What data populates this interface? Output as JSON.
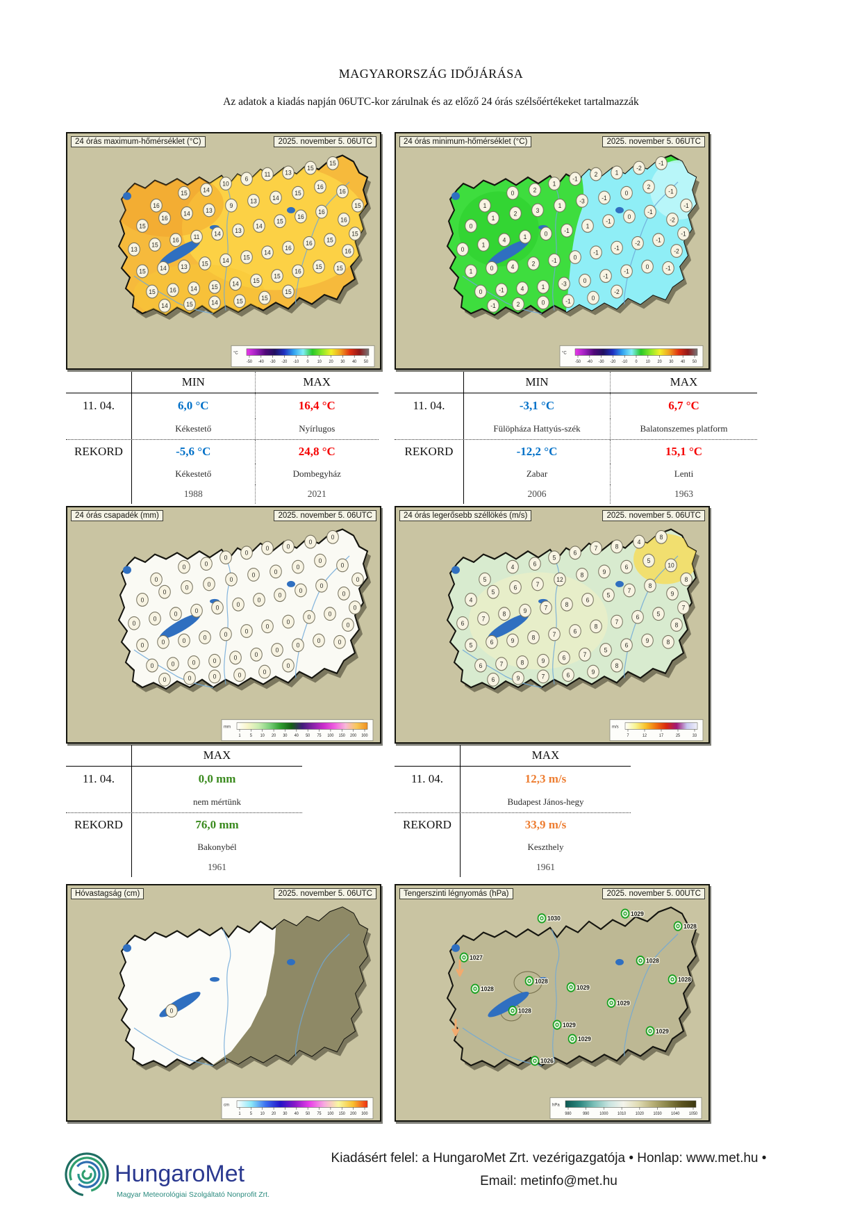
{
  "page": {
    "title": "MAGYARORSZÁG IDŐJÁRÁSA",
    "subtitle": "Az adatok a kiadás napján 06UTC-kor zárulnak és az előző 24 órás szélsőértékeket tartalmazzák"
  },
  "theme": {
    "blue": "#0070c8",
    "red": "#f50000",
    "green": "#3a8a1e",
    "orange": "#ed7d31",
    "map_bg": "#c9c4a2"
  },
  "station_grid": [
    [
      128,
      92
    ],
    [
      168,
      76
    ],
    [
      200,
      72
    ],
    [
      228,
      64
    ],
    [
      258,
      58
    ],
    [
      288,
      52
    ],
    [
      318,
      50
    ],
    [
      350,
      44
    ],
    [
      382,
      38
    ],
    [
      108,
      118
    ],
    [
      140,
      108
    ],
    [
      172,
      102
    ],
    [
      204,
      98
    ],
    [
      236,
      92
    ],
    [
      268,
      86
    ],
    [
      300,
      82
    ],
    [
      332,
      76
    ],
    [
      364,
      68
    ],
    [
      396,
      74
    ],
    [
      418,
      92
    ],
    [
      96,
      148
    ],
    [
      126,
      142
    ],
    [
      156,
      136
    ],
    [
      186,
      132
    ],
    [
      216,
      128
    ],
    [
      246,
      124
    ],
    [
      276,
      118
    ],
    [
      306,
      112
    ],
    [
      336,
      106
    ],
    [
      366,
      100
    ],
    [
      398,
      110
    ],
    [
      414,
      128
    ],
    [
      108,
      176
    ],
    [
      138,
      172
    ],
    [
      168,
      170
    ],
    [
      198,
      166
    ],
    [
      228,
      162
    ],
    [
      258,
      158
    ],
    [
      288,
      152
    ],
    [
      318,
      146
    ],
    [
      348,
      140
    ],
    [
      378,
      136
    ],
    [
      404,
      150
    ],
    [
      122,
      202
    ],
    [
      152,
      200
    ],
    [
      182,
      198
    ],
    [
      212,
      196
    ],
    [
      242,
      192
    ],
    [
      272,
      188
    ],
    [
      302,
      182
    ],
    [
      332,
      176
    ],
    [
      362,
      170
    ],
    [
      392,
      172
    ],
    [
      140,
      220
    ],
    [
      176,
      218
    ],
    [
      212,
      216
    ],
    [
      248,
      214
    ],
    [
      284,
      210
    ],
    [
      318,
      202
    ]
  ],
  "maps": [
    {
      "id": "max-temp",
      "label": "24 órás maximum-hőmérséklet (°C)",
      "date": "2025. november 5. 06UTC",
      "fill": "#f6ba3c",
      "grid_ref": "station_grid",
      "values": [
        "16",
        "15",
        "14",
        "10",
        "6",
        "11",
        "13",
        "15",
        "15",
        "15",
        "16",
        "14",
        "13",
        "9",
        "13",
        "14",
        "15",
        "16",
        "16",
        "15",
        "13",
        "15",
        "16",
        "11",
        "14",
        "13",
        "14",
        "15",
        "16",
        "16",
        "16",
        "15",
        "15",
        "14",
        "13",
        "15",
        "14",
        "15",
        "14",
        "16",
        "16",
        "15",
        "16",
        "15",
        "16",
        "14",
        "15",
        "14",
        "15",
        "15",
        "16",
        "15",
        "15",
        "14",
        "15",
        "14",
        "15",
        "15",
        "15"
      ],
      "legend": {
        "unit": "°C",
        "ticks": [
          "-50",
          "-40",
          "-30",
          "-20",
          "-10",
          "0",
          "10",
          "20",
          "30",
          "40",
          "50"
        ],
        "colors": [
          "#e838e8",
          "#a020c0",
          "#500878",
          "#201060",
          "#2030c0",
          "#30a0f0",
          "#80eef8",
          "#28c828",
          "#88e828",
          "#f0f028",
          "#f0a020",
          "#e03010",
          "#901818",
          "#787878"
        ]
      }
    },
    {
      "id": "min-temp",
      "label": "24 órás minimum-hőmérséklet (°C)",
      "date": "2025. november 5. 06UTC",
      "fill": "#3edd3e",
      "grid_ref": "station_grid",
      "values": [
        "1",
        "0",
        "2",
        "1",
        "-1",
        "2",
        "1",
        "-2",
        "-1",
        "0",
        "1",
        "2",
        "3",
        "1",
        "-3",
        "-1",
        "0",
        "2",
        "-1",
        "-1",
        "0",
        "1",
        "4",
        "1",
        "0",
        "-1",
        "1",
        "-1",
        "0",
        "-1",
        "-2",
        "-1",
        "1",
        "0",
        "4",
        "2",
        "-1",
        "0",
        "-1",
        "-1",
        "-2",
        "-1",
        "-2",
        "0",
        "-1",
        "4",
        "1",
        "-3",
        "0",
        "-1",
        "-1",
        "0",
        "-1",
        "-1",
        "2",
        "0",
        "-1",
        "0",
        "-2"
      ],
      "legend": {
        "unit": "°C",
        "ticks": [
          "-50",
          "-40",
          "-30",
          "-20",
          "-10",
          "0",
          "10",
          "20",
          "30",
          "40",
          "50"
        ],
        "colors": [
          "#e838e8",
          "#a020c0",
          "#500878",
          "#201060",
          "#2030c0",
          "#30a0f0",
          "#80eef8",
          "#28c828",
          "#88e828",
          "#f0f028",
          "#f0a020",
          "#e03010",
          "#901818",
          "#787878"
        ]
      }
    },
    {
      "id": "precip",
      "label": "24 órás csapadék (mm)",
      "date": "2025. november 5. 06UTC",
      "fill": "#fafaf4",
      "grid_ref": "station_grid",
      "values": [
        "0",
        "0",
        "0",
        "0",
        "0",
        "0",
        "0",
        "0",
        "0",
        "0",
        "0",
        "0",
        "0",
        "0",
        "0",
        "0",
        "0",
        "0",
        "0",
        "0",
        "0",
        "0",
        "0",
        "0",
        "0",
        "0",
        "0",
        "0",
        "0",
        "0",
        "0",
        "0",
        "0",
        "0",
        "0",
        "0",
        "0",
        "0",
        "0",
        "0",
        "0",
        "0",
        "0",
        "0",
        "0",
        "0",
        "0",
        "0",
        "0",
        "0",
        "0",
        "0",
        "0",
        "0",
        "0",
        "0",
        "0",
        "0",
        "0"
      ],
      "legend": {
        "unit": "mm",
        "ticks": [
          "1",
          "5",
          "10",
          "20",
          "30",
          "40",
          "50",
          "75",
          "100",
          "150",
          "200",
          "300"
        ],
        "colors": [
          "#ffffff",
          "#f8f5c8",
          "#c8ecb0",
          "#7cd07c",
          "#2f9e2f",
          "#156015",
          "#401c78",
          "#8822a8",
          "#cc2ccc",
          "#f060e0",
          "#f8b8d8",
          "#f8c858",
          "#f09020"
        ]
      }
    },
    {
      "id": "wind",
      "label": "24 órás legerősebb széllökés (m/s)",
      "date": "2025. november 5. 06UTC",
      "fill": "#d8ebcf",
      "grid_ref": "station_grid",
      "values": [
        "5",
        "4",
        "6",
        "5",
        "6",
        "7",
        "8",
        "4",
        "8",
        "4",
        "5",
        "6",
        "7",
        "12",
        "8",
        "9",
        "6",
        "5",
        "10",
        "8",
        "6",
        "7",
        "8",
        "9",
        "7",
        "8",
        "6",
        "5",
        "7",
        "8",
        "9",
        "7",
        "5",
        "6",
        "9",
        "8",
        "7",
        "6",
        "8",
        "7",
        "6",
        "5",
        "8",
        "6",
        "7",
        "8",
        "9",
        "6",
        "7",
        "5",
        "6",
        "9",
        "8",
        "6",
        "9",
        "7",
        "6",
        "9",
        "8"
      ],
      "legend": {
        "unit": "m/s",
        "ticks": [
          "7",
          "12",
          "17",
          "25",
          "33"
        ],
        "colors": [
          "#ffffff",
          "#f8f490",
          "#f8c028",
          "#f07010",
          "#d82810",
          "#a01878",
          "#c8c8f0",
          "#f0f0f8"
        ]
      }
    },
    {
      "id": "snow",
      "label": "Hóvastagság (cm)",
      "date": "2025. november 5. 06UTC",
      "fill": "#fcfcf8",
      "grid": [
        [
          150,
          160
        ]
      ],
      "values": [
        "0"
      ],
      "legend": {
        "unit": "cm",
        "ticks": [
          "1",
          "5",
          "10",
          "20",
          "30",
          "40",
          "50",
          "75",
          "100",
          "150",
          "200",
          "300"
        ],
        "colors": [
          "#ffffff",
          "#8ae8f8",
          "#3b6ff0",
          "#2414c8",
          "#8818c8",
          "#e83ee8",
          "#f8a8e0",
          "#f8f8a0",
          "#f8c030",
          "#f03010"
        ]
      }
    },
    {
      "id": "pressure",
      "label": "Tengerszinti légnyomás (hPa)",
      "date": "2025. november 5. 00UTC",
      "fill": "#bdb894",
      "station_style": "pressure",
      "grid": [
        [
          210,
          42
        ],
        [
          330,
          36
        ],
        [
          406,
          52
        ],
        [
          98,
          92
        ],
        [
          114,
          132
        ],
        [
          192,
          122
        ],
        [
          252,
          130
        ],
        [
          352,
          96
        ],
        [
          398,
          120
        ],
        [
          310,
          150
        ],
        [
          168,
          160
        ],
        [
          232,
          178
        ],
        [
          254,
          196
        ],
        [
          366,
          186
        ],
        [
          200,
          224
        ]
      ],
      "values": [
        "1030",
        "1029",
        "1028",
        "1027",
        "1028",
        "1028",
        "1029",
        "1028",
        "1028",
        "1029",
        "1028",
        "1029",
        "1029",
        "1029",
        "1026"
      ],
      "arrows": [
        [
          92,
          108
        ],
        [
          86,
          184
        ]
      ],
      "legend": {
        "unit": "hPa",
        "ticks": [
          "980",
          "990",
          "1000",
          "1010",
          "1020",
          "1030",
          "1040",
          "1050"
        ],
        "colors": [
          "#0c5850",
          "#2e8880",
          "#7cc0b8",
          "#c8e4e0",
          "#f4f4ec",
          "#e0dcb4",
          "#b8b078",
          "#8a8448",
          "#5c5420",
          "#3c3810"
        ]
      }
    }
  ],
  "tables": [
    {
      "name": "max-temp-extremes",
      "col2": "MIN",
      "col3": "MAX",
      "current": {
        "label": "11. 04.",
        "min": "6,0 °C",
        "min_place": "Kékestető",
        "max": "16,4 °C",
        "max_place": "Nyírlugos"
      },
      "record": {
        "label": "REKORD",
        "min": "-5,6 °C",
        "min_place": "Kékestető",
        "min_year": "1988",
        "max": "24,8 °C",
        "max_place": "Dombegyház",
        "max_year": "2021"
      }
    },
    {
      "name": "min-temp-extremes",
      "col2": "MIN",
      "col3": "MAX",
      "current": {
        "label": "11. 04.",
        "min": "-3,1 °C",
        "min_place": "Fülöpháza Hattyús-szék",
        "max": "6,7 °C",
        "max_place": "Balatonszemes platform"
      },
      "record": {
        "label": "REKORD",
        "min": "-12,2 °C",
        "min_place": "Zabar",
        "min_year": "2006",
        "max": "15,1 °C",
        "max_place": "Lenti",
        "max_year": "1963"
      }
    },
    {
      "name": "precip-extremes",
      "col2": "MAX",
      "current": {
        "label": "11. 04.",
        "max": "0,0 mm",
        "max_place": "nem mértünk"
      },
      "record": {
        "label": "REKORD",
        "max": "76,0 mm",
        "max_place": "Bakonybél",
        "max_year": "1961"
      }
    },
    {
      "name": "wind-extremes",
      "col2": "MAX",
      "current": {
        "label": "11. 04.",
        "max": "12,3 m/s",
        "max_place": "Budapest János-hegy"
      },
      "record": {
        "label": "REKORD",
        "max": "33,9 m/s",
        "max_place": "Keszthely",
        "max_year": "1961"
      }
    }
  ],
  "footer": {
    "logo_text": "HungaroMet",
    "logo_tagline": "Magyar Meteorológiai Szolgáltató Nonprofit Zrt.",
    "line1": "Kiadásért felel: a HungaroMet Zrt. vezérigazgatója • Honlap: www.met.hu •",
    "line2": "Email: metinfo@met.hu"
  }
}
